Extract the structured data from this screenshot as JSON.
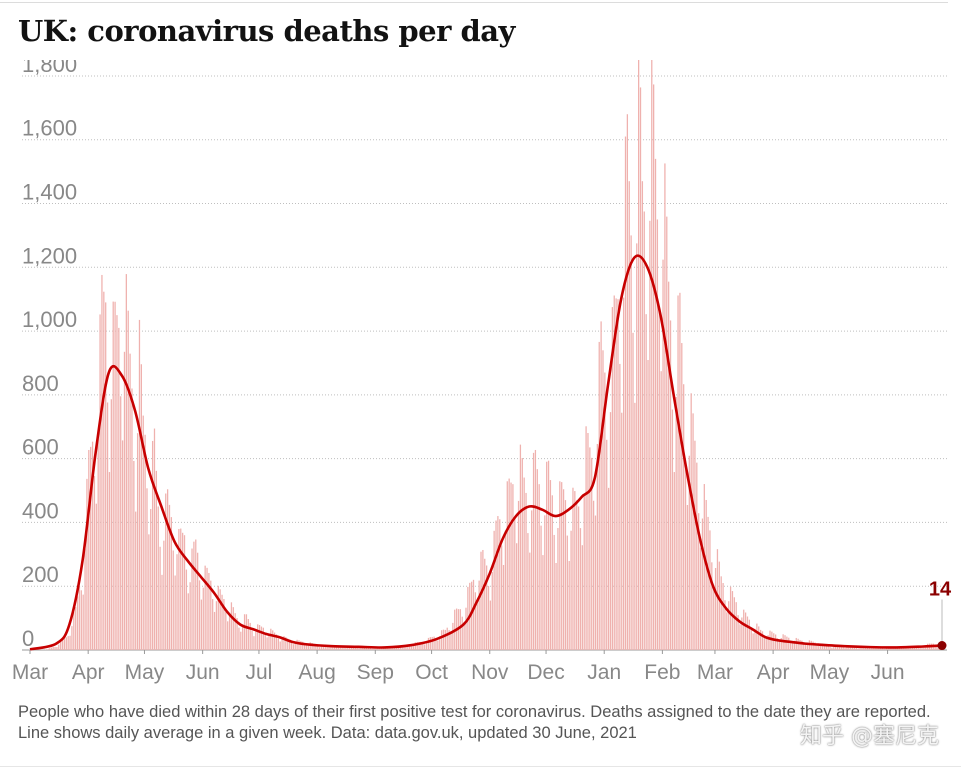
{
  "header": {
    "title": "UK: coronavirus deaths per day"
  },
  "footer": {
    "note": "People who have died within 28 days of their first positive test for coronavirus. Deaths assigned to the date they are reported. Line shows daily average in a given week. Data: data.gov.uk, updated 30 June, 2021",
    "watermark": "知乎 @塞尼克"
  },
  "colors": {
    "bars": "#efb1ae",
    "line": "#c70000",
    "grid": "#bfbfbf",
    "ticks": "#888888",
    "title": "#121212",
    "label": "#8b0000"
  },
  "chart_data": {
    "type": "bar",
    "title": "UK: coronavirus deaths per day",
    "xlabel": "",
    "ylabel": "",
    "ylim": [
      0,
      1850
    ],
    "yticks": [
      0,
      200,
      400,
      600,
      800,
      1000,
      1200,
      1400,
      1600,
      1800
    ],
    "ytick_labels": [
      "0",
      "200",
      "400",
      "600",
      "800",
      "1,000",
      "1,200",
      "1,400",
      "1,600",
      "1,800"
    ],
    "x_start": "2020-03-01",
    "x_end": "2021-06-30",
    "month_ticks": [
      {
        "date": "2020-03-01",
        "label": "Mar"
      },
      {
        "date": "2020-04-01",
        "label": "Apr"
      },
      {
        "date": "2020-05-01",
        "label": "May"
      },
      {
        "date": "2020-06-01",
        "label": "Jun"
      },
      {
        "date": "2020-07-01",
        "label": "Jul"
      },
      {
        "date": "2020-08-01",
        "label": "Aug"
      },
      {
        "date": "2020-09-01",
        "label": "Sep"
      },
      {
        "date": "2020-10-01",
        "label": "Oct"
      },
      {
        "date": "2020-11-01",
        "label": "Nov"
      },
      {
        "date": "2020-12-01",
        "label": "Dec"
      },
      {
        "date": "2021-01-01",
        "label": "Jan"
      },
      {
        "date": "2021-02-01",
        "label": "Feb"
      },
      {
        "date": "2021-03-01",
        "label": "Mar"
      },
      {
        "date": "2021-04-01",
        "label": "Apr"
      },
      {
        "date": "2021-05-01",
        "label": "May"
      },
      {
        "date": "2021-06-01",
        "label": "Jun"
      }
    ],
    "grid": true,
    "series": [
      {
        "kind": "bars",
        "points": [
          [
            "2020-03-01",
            0
          ],
          [
            "2020-03-10",
            2
          ],
          [
            "2020-03-15",
            15
          ],
          [
            "2020-03-20",
            40
          ],
          [
            "2020-03-25",
            120
          ],
          [
            "2020-03-29",
            280
          ],
          [
            "2020-04-01",
            560
          ],
          [
            "2020-04-04",
            700
          ],
          [
            "2020-04-06",
            780
          ],
          [
            "2020-04-08",
            1050
          ],
          [
            "2020-04-10",
            1090
          ],
          [
            "2020-04-12",
            900
          ],
          [
            "2020-04-14",
            950
          ],
          [
            "2020-04-16",
            1000
          ],
          [
            "2020-04-18",
            1020
          ],
          [
            "2020-04-20",
            1100
          ],
          [
            "2020-04-22",
            950
          ],
          [
            "2020-04-24",
            820
          ],
          [
            "2020-04-26",
            700
          ],
          [
            "2020-04-28",
            900
          ],
          [
            "2020-04-30",
            700
          ],
          [
            "2020-05-02",
            650
          ],
          [
            "2020-05-04",
            520
          ],
          [
            "2020-05-06",
            620
          ],
          [
            "2020-05-08",
            450
          ],
          [
            "2020-05-10",
            380
          ],
          [
            "2020-05-13",
            450
          ],
          [
            "2020-05-16",
            400
          ],
          [
            "2020-05-19",
            330
          ],
          [
            "2020-05-22",
            360
          ],
          [
            "2020-05-25",
            250
          ],
          [
            "2020-05-28",
            330
          ],
          [
            "2020-06-01",
            230
          ],
          [
            "2020-06-04",
            230
          ],
          [
            "2020-06-08",
            180
          ],
          [
            "2020-06-12",
            160
          ],
          [
            "2020-06-16",
            130
          ],
          [
            "2020-06-20",
            90
          ],
          [
            "2020-06-24",
            100
          ],
          [
            "2020-06-28",
            70
          ],
          [
            "2020-07-03",
            70
          ],
          [
            "2020-07-08",
            55
          ],
          [
            "2020-07-13",
            40
          ],
          [
            "2020-07-18",
            30
          ],
          [
            "2020-07-25",
            25
          ],
          [
            "2020-08-01",
            15
          ],
          [
            "2020-08-10",
            12
          ],
          [
            "2020-08-20",
            10
          ],
          [
            "2020-09-01",
            6
          ],
          [
            "2020-09-10",
            8
          ],
          [
            "2020-09-20",
            18
          ],
          [
            "2020-09-28",
            30
          ],
          [
            "2020-10-03",
            45
          ],
          [
            "2020-10-08",
            60
          ],
          [
            "2020-10-13",
            110
          ],
          [
            "2020-10-18",
            140
          ],
          [
            "2020-10-23",
            220
          ],
          [
            "2020-10-28",
            280
          ],
          [
            "2020-11-01",
            250
          ],
          [
            "2020-11-05",
            400
          ],
          [
            "2020-11-09",
            440
          ],
          [
            "2020-11-13",
            520
          ],
          [
            "2020-11-17",
            560
          ],
          [
            "2020-11-21",
            470
          ],
          [
            "2020-11-25",
            560
          ],
          [
            "2020-11-29",
            480
          ],
          [
            "2020-12-02",
            530
          ],
          [
            "2020-12-06",
            440
          ],
          [
            "2020-12-10",
            480
          ],
          [
            "2020-12-14",
            440
          ],
          [
            "2020-12-18",
            450
          ],
          [
            "2020-12-22",
            610
          ],
          [
            "2020-12-26",
            600
          ],
          [
            "2020-12-30",
            920
          ],
          [
            "2021-01-03",
            820
          ],
          [
            "2021-01-07",
            1050
          ],
          [
            "2021-01-10",
            1200
          ],
          [
            "2021-01-13",
            1500
          ],
          [
            "2021-01-15",
            1300
          ],
          [
            "2021-01-17",
            1250
          ],
          [
            "2021-01-19",
            1750
          ],
          [
            "2021-01-21",
            1400
          ],
          [
            "2021-01-23",
            1350
          ],
          [
            "2021-01-26",
            1700
          ],
          [
            "2021-01-29",
            1350
          ],
          [
            "2021-02-01",
            1440
          ],
          [
            "2021-02-04",
            1100
          ],
          [
            "2021-02-07",
            900
          ],
          [
            "2021-02-10",
            1000
          ],
          [
            "2021-02-13",
            750
          ],
          [
            "2021-02-16",
            700
          ],
          [
            "2021-02-20",
            550
          ],
          [
            "2021-02-24",
            420
          ],
          [
            "2021-02-28",
            330
          ],
          [
            "2021-03-04",
            220
          ],
          [
            "2021-03-08",
            180
          ],
          [
            "2021-03-12",
            150
          ],
          [
            "2021-03-16",
            110
          ],
          [
            "2021-03-20",
            90
          ],
          [
            "2021-03-25",
            60
          ],
          [
            "2021-04-01",
            50
          ],
          [
            "2021-04-08",
            40
          ],
          [
            "2021-04-15",
            30
          ],
          [
            "2021-04-22",
            25
          ],
          [
            "2021-05-01",
            12
          ],
          [
            "2021-05-15",
            8
          ],
          [
            "2021-06-01",
            6
          ],
          [
            "2021-06-15",
            10
          ],
          [
            "2021-06-30",
            25
          ]
        ]
      },
      {
        "kind": "line",
        "points": [
          [
            "2020-03-01",
            2
          ],
          [
            "2020-03-15",
            20
          ],
          [
            "2020-03-22",
            80
          ],
          [
            "2020-03-29",
            280
          ],
          [
            "2020-04-05",
            620
          ],
          [
            "2020-04-12",
            870
          ],
          [
            "2020-04-19",
            860
          ],
          [
            "2020-04-26",
            750
          ],
          [
            "2020-05-03",
            570
          ],
          [
            "2020-05-10",
            450
          ],
          [
            "2020-05-17",
            340
          ],
          [
            "2020-05-24",
            280
          ],
          [
            "2020-05-31",
            230
          ],
          [
            "2020-06-07",
            180
          ],
          [
            "2020-06-14",
            120
          ],
          [
            "2020-06-21",
            80
          ],
          [
            "2020-06-28",
            65
          ],
          [
            "2020-07-05",
            50
          ],
          [
            "2020-07-12",
            40
          ],
          [
            "2020-07-19",
            25
          ],
          [
            "2020-07-26",
            18
          ],
          [
            "2020-08-09",
            12
          ],
          [
            "2020-08-23",
            10
          ],
          [
            "2020-09-06",
            8
          ],
          [
            "2020-09-20",
            15
          ],
          [
            "2020-10-04",
            35
          ],
          [
            "2020-10-18",
            80
          ],
          [
            "2020-10-25",
            150
          ],
          [
            "2020-11-01",
            240
          ],
          [
            "2020-11-08",
            350
          ],
          [
            "2020-11-15",
            420
          ],
          [
            "2020-11-22",
            450
          ],
          [
            "2020-11-29",
            440
          ],
          [
            "2020-12-06",
            420
          ],
          [
            "2020-12-13",
            440
          ],
          [
            "2020-12-20",
            480
          ],
          [
            "2020-12-27",
            540
          ],
          [
            "2021-01-03",
            830
          ],
          [
            "2021-01-10",
            1100
          ],
          [
            "2021-01-17",
            1230
          ],
          [
            "2021-01-24",
            1200
          ],
          [
            "2021-01-31",
            1050
          ],
          [
            "2021-02-07",
            800
          ],
          [
            "2021-02-14",
            560
          ],
          [
            "2021-02-21",
            350
          ],
          [
            "2021-02-28",
            200
          ],
          [
            "2021-03-07",
            130
          ],
          [
            "2021-03-14",
            90
          ],
          [
            "2021-03-21",
            65
          ],
          [
            "2021-03-28",
            40
          ],
          [
            "2021-04-04",
            30
          ],
          [
            "2021-04-11",
            25
          ],
          [
            "2021-04-18",
            20
          ],
          [
            "2021-04-25",
            17
          ],
          [
            "2021-05-09",
            12
          ],
          [
            "2021-05-23",
            9
          ],
          [
            "2021-06-06",
            8
          ],
          [
            "2021-06-20",
            11
          ],
          [
            "2021-06-30",
            14
          ]
        ]
      }
    ],
    "annotations": [
      {
        "date": "2021-06-30",
        "value": 14,
        "label": "14"
      }
    ]
  }
}
